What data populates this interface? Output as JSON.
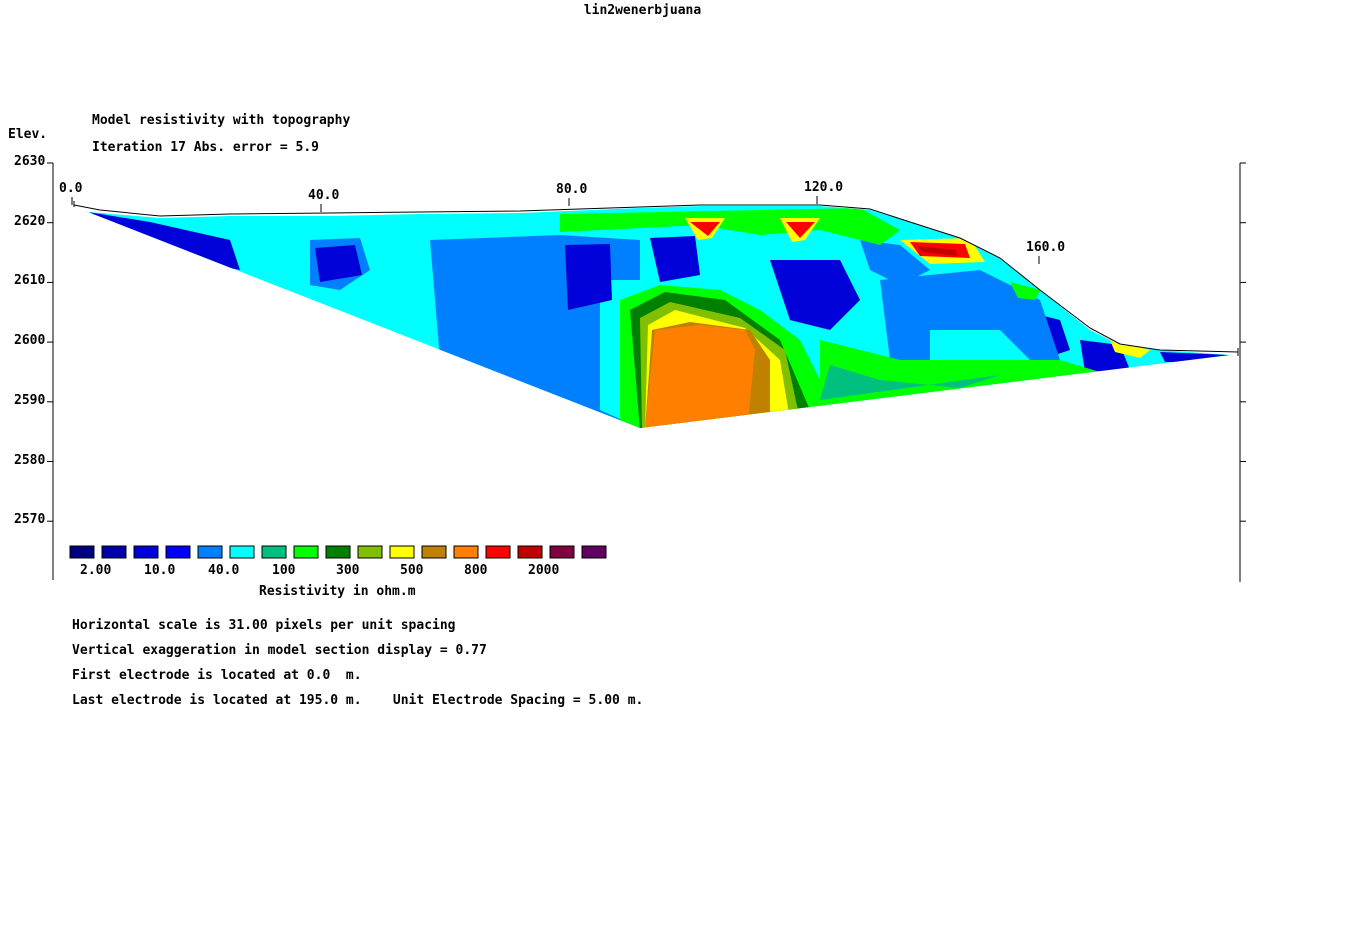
{
  "window_title": "lin2wenerbjuana",
  "chart_data": {
    "type": "heatmap",
    "title": "Model resistivity with topography",
    "subtitle": "Iteration 17 Abs. error = 5.9",
    "ylabel": "Elev.",
    "xlabel": "",
    "x_ticks": [
      "0.0",
      "40.0",
      "80.0",
      "120.0",
      "160.0"
    ],
    "y_ticks": [
      "2630",
      "2620",
      "2610",
      "2600",
      "2590",
      "2580",
      "2570"
    ],
    "xlim": [
      0,
      195
    ],
    "ylim": [
      2563,
      2630
    ],
    "grid": false,
    "colorbar": {
      "colors": [
        "#000080",
        "#0000a8",
        "#0000d8",
        "#0000ff",
        "#0080ff",
        "#00ffff",
        "#00c080",
        "#00ff00",
        "#008000",
        "#80c000",
        "#ffff00",
        "#c08000",
        "#ff8000",
        "#ff0000",
        "#c00000",
        "#800040",
        "#600060"
      ],
      "labels": [
        "2.00",
        "10.0",
        "40.0",
        "100",
        "300",
        "500",
        "800",
        "2000"
      ],
      "title": "Resistivity in ohm.m"
    }
  },
  "notes": [
    "Horizontal scale is 31.00 pixels per unit spacing",
    "Vertical exaggeration in model section display = 0.77",
    "First electrode is located at 0.0  m.",
    "Last electrode is located at 195.0 m.    Unit Electrode Spacing = 5.00 m."
  ]
}
